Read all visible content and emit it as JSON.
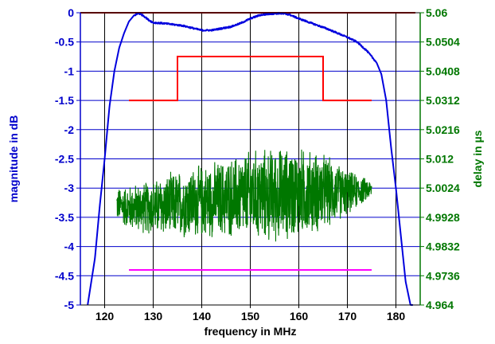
{
  "chart_data": {
    "type": "line",
    "title": "",
    "xlabel": "frequency in MHz",
    "ylabel_left": "magnitude in dB",
    "ylabel_right": "delay in µs",
    "xlim": [
      115,
      185
    ],
    "ylim_left": [
      -5,
      0
    ],
    "ylim_right": [
      4.964,
      5.06
    ],
    "grid": true,
    "x_ticks": [
      120,
      130,
      140,
      150,
      160,
      170,
      180
    ],
    "y_left_ticks": [
      "-5",
      "-4.5",
      "-4",
      "-3.5",
      "-3",
      "-2.5",
      "-2",
      "-1.5",
      "-1",
      "-0.5",
      "0"
    ],
    "y_right_ticks": [
      "4.964",
      "4.9736",
      "4.9832",
      "4.9928",
      "5.0024",
      "5.012",
      "5.0216",
      "5.0312",
      "5.0408",
      "5.0504",
      "5.06"
    ],
    "colors": {
      "magnitude": "#0000dd",
      "delay": "#007700",
      "mask_upper": "#b00000",
      "mask_step": "#ff0000",
      "mask_lower": "#ff00ff",
      "left_axis": "#0000cc",
      "right_axis": "#007700",
      "grid_h": "#0000cc",
      "grid_v": "#000000"
    },
    "series": [
      {
        "id": "magnitude",
        "axis": "left",
        "x": [
          116.5,
          118,
          119,
          120,
          121,
          122,
          123,
          124,
          125,
          126,
          127,
          128,
          129,
          130,
          132,
          134,
          136,
          138,
          140,
          142,
          144,
          146,
          148,
          150,
          152,
          154,
          156,
          158,
          160,
          162,
          164,
          166,
          168,
          170,
          172,
          174,
          176,
          177,
          178,
          179,
          180,
          181,
          182,
          183,
          184
        ],
        "y": [
          -5,
          -4.2,
          -3.3,
          -2.5,
          -1.6,
          -1.0,
          -0.6,
          -0.35,
          -0.15,
          -0.05,
          -0.01,
          -0.05,
          -0.12,
          -0.17,
          -0.18,
          -0.2,
          -0.22,
          -0.26,
          -0.3,
          -0.3,
          -0.27,
          -0.24,
          -0.18,
          -0.1,
          -0.04,
          -0.02,
          -0.01,
          -0.03,
          -0.1,
          -0.16,
          -0.22,
          -0.28,
          -0.35,
          -0.42,
          -0.5,
          -0.65,
          -0.85,
          -1.05,
          -1.5,
          -2.3,
          -3.0,
          -3.8,
          -4.6,
          -5,
          -5
        ],
        "draw_to": 183.5
      },
      {
        "id": "delay",
        "axis": "right",
        "type": "noise-band",
        "x_start": 122.5,
        "x_end": 175,
        "center": [
          [
            122.5,
            4.997
          ],
          [
            125,
            4.996
          ],
          [
            130,
            4.996
          ],
          [
            135,
            4.997
          ],
          [
            140,
            4.998
          ],
          [
            145,
            4.999
          ],
          [
            150,
            5.0
          ],
          [
            155,
            5.0
          ],
          [
            160,
            5.001
          ],
          [
            165,
            5.001
          ],
          [
            170,
            5.001
          ],
          [
            175,
            5.002
          ]
        ],
        "amplitude": [
          [
            122.5,
            0.006
          ],
          [
            125,
            0.008
          ],
          [
            130,
            0.01
          ],
          [
            135,
            0.012
          ],
          [
            140,
            0.013
          ],
          [
            145,
            0.014
          ],
          [
            150,
            0.016
          ],
          [
            155,
            0.017
          ],
          [
            160,
            0.016
          ],
          [
            165,
            0.014
          ],
          [
            170,
            0.008
          ],
          [
            175,
            0.003
          ]
        ]
      }
    ],
    "masks": [
      {
        "id": "upper-limit",
        "axis": "left",
        "x": [
          115,
          184
        ],
        "y": [
          0,
          0
        ]
      },
      {
        "id": "delay-mask",
        "axis": "left",
        "x": [
          125,
          135,
          135,
          165,
          165,
          175
        ],
        "y": [
          -1.5,
          -1.5,
          -0.75,
          -0.75,
          -1.5,
          -1.5
        ]
      },
      {
        "id": "lower-limit",
        "axis": "left",
        "x": [
          125,
          175
        ],
        "y": [
          -4.4,
          -4.4
        ]
      }
    ]
  }
}
